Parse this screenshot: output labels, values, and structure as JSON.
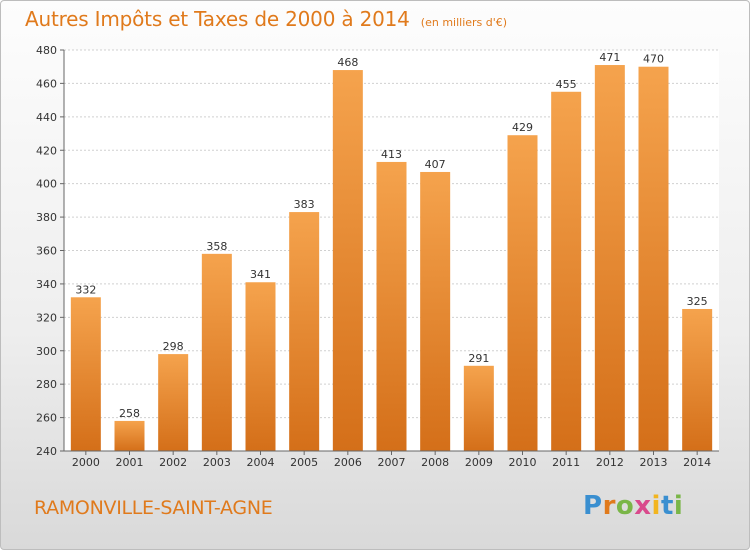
{
  "header": {
    "title": "Autres Impôts et Taxes de 2000 à 2014",
    "unit": "(en milliers d'€)"
  },
  "footer": {
    "place": "RAMONVILLE-SAINT-AGNE",
    "logo_text": "Proxiti"
  },
  "colors": {
    "accent": "#e07a1c",
    "bar_light": "#f5a34d",
    "bar_dark": "#d46f19"
  },
  "chart_data": {
    "type": "bar",
    "title": "Autres Impôts et Taxes de 2000 à 2014",
    "subtitle": "(en milliers d'€)",
    "xlabel": "",
    "ylabel": "",
    "categories": [
      "2000",
      "2001",
      "2002",
      "2003",
      "2004",
      "2005",
      "2006",
      "2007",
      "2008",
      "2009",
      "2010",
      "2011",
      "2012",
      "2013",
      "2014"
    ],
    "values": [
      332,
      258,
      298,
      358,
      341,
      383,
      468,
      413,
      407,
      291,
      429,
      455,
      471,
      470,
      325
    ],
    "ylim": [
      240,
      480
    ],
    "yticks": [
      240,
      260,
      280,
      300,
      320,
      340,
      360,
      380,
      400,
      420,
      440,
      460,
      480
    ],
    "grid": true,
    "legend": "none"
  }
}
